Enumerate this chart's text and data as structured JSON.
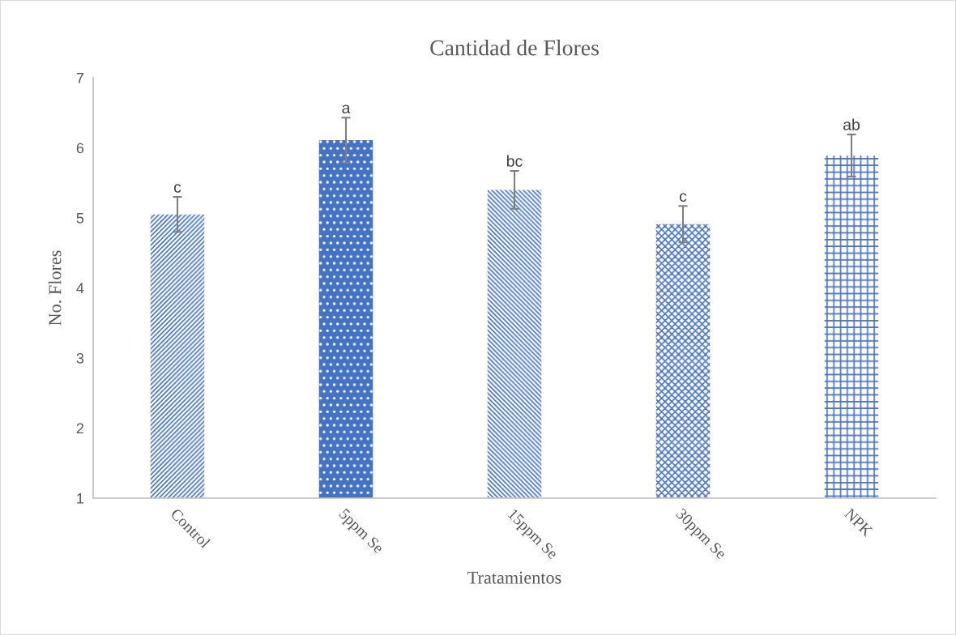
{
  "chart_data": {
    "type": "bar",
    "title": "Cantidad de Flores",
    "xlabel": "Tratamientos",
    "ylabel": "No. Flores",
    "categories": [
      "Control",
      "5ppm Se",
      "15ppm Se",
      "30ppm Se",
      "NPK"
    ],
    "values": [
      5.05,
      6.11,
      5.4,
      4.91,
      5.89
    ],
    "errors": [
      0.25,
      0.32,
      0.27,
      0.26,
      0.3
    ],
    "color": "#4472c4",
    "ylim": [
      1,
      7
    ],
    "yticks": [
      1,
      2,
      3,
      4,
      5,
      6,
      7
    ],
    "grid": false,
    "annotations": [
      {
        "text": "c",
        "x": "Control",
        "y": 5.3
      },
      {
        "text": "a",
        "x": "5ppm Se",
        "y": 6.43
      },
      {
        "text": "bc",
        "x": "15ppm Se",
        "y": 5.67
      },
      {
        "text": "c",
        "x": "30ppm Se",
        "y": 5.17
      },
      {
        "text": "ab",
        "x": "NPK",
        "y": 6.19
      }
    ]
  }
}
